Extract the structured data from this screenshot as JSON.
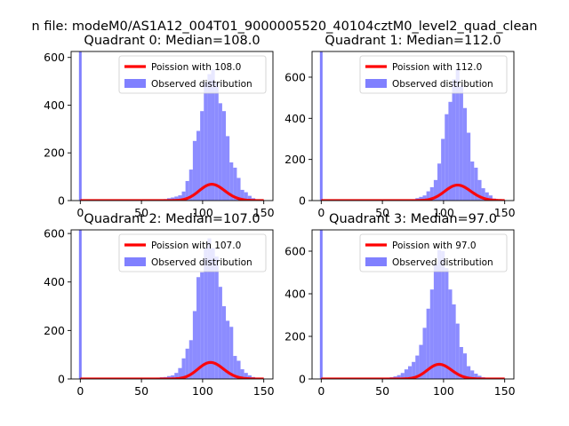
{
  "figure": {
    "suptitle": "n file: modeM0/AS1A12_004T01_9000005520_40104cztM0_level2_quad_clean"
  },
  "colors": {
    "bar": "#8080ff",
    "line": "#ff0000",
    "text": "#000000"
  },
  "chart_data": [
    {
      "type": "bar",
      "title": "Quadrant 0: Median=108.0",
      "xlim": [
        -7.5,
        157.5
      ],
      "ylim": [
        0,
        625
      ],
      "xticks": [
        0,
        50,
        100,
        150
      ],
      "yticks": [
        0,
        200,
        400,
        600
      ],
      "legend": {
        "position": "upper right",
        "entries": [
          "Poission with 108.0",
          "Observed distribution"
        ]
      },
      "bar_width": 3,
      "zero_bin": {
        "x": 0,
        "value": 625
      },
      "bars": {
        "x": [
          62,
          65,
          68,
          71,
          74,
          77,
          80,
          83,
          86,
          89,
          92,
          95,
          98,
          101,
          104,
          107,
          110,
          113,
          116,
          119,
          122,
          125,
          128,
          131,
          134,
          137,
          140
        ],
        "values": [
          2,
          4,
          6,
          10,
          13,
          17,
          22,
          38,
          82,
          130,
          250,
          292,
          375,
          495,
          530,
          550,
          495,
          408,
          375,
          270,
          160,
          138,
          95,
          45,
          35,
          20,
          10
        ]
      },
      "poisson": {
        "name": "Poission with 108.0",
        "mean": 108.0,
        "scale": 1780,
        "x_range": [
          0,
          150
        ]
      }
    },
    {
      "type": "bar",
      "title": "Quadrant 1: Median=112.0",
      "xlim": [
        -7.5,
        157.5
      ],
      "ylim": [
        0,
        725
      ],
      "xticks": [
        0,
        50,
        100,
        150
      ],
      "yticks": [
        0,
        200,
        400,
        600
      ],
      "legend": {
        "position": "upper right",
        "entries": [
          "Poission with 112.0",
          "Observed distribution"
        ]
      },
      "bar_width": 3,
      "zero_bin": {
        "x": 0,
        "value": 725
      },
      "bars": {
        "x": [
          74,
          77,
          80,
          83,
          86,
          89,
          92,
          95,
          98,
          101,
          104,
          107,
          110,
          113,
          116,
          119,
          122,
          125,
          128,
          131,
          134,
          137,
          140
        ],
        "values": [
          5,
          12,
          18,
          25,
          45,
          65,
          100,
          180,
          300,
          420,
          480,
          590,
          640,
          560,
          450,
          330,
          190,
          160,
          100,
          60,
          40,
          25,
          10
        ]
      },
      "poisson": {
        "name": "Poission with 112.0",
        "mean": 112.0,
        "scale": 2000,
        "x_range": [
          0,
          150
        ]
      }
    },
    {
      "type": "bar",
      "title": "Quadrant 2: Median=107.0",
      "xlim": [
        -7.5,
        157.5
      ],
      "ylim": [
        0,
        615
      ],
      "xticks": [
        0,
        50,
        100,
        150
      ],
      "yticks": [
        0,
        200,
        400,
        600
      ],
      "legend": {
        "position": "upper right",
        "entries": [
          "Poission with 107.0",
          "Observed distribution"
        ]
      },
      "bar_width": 3,
      "zero_bin": {
        "x": 0,
        "value": 615
      },
      "bars": {
        "x": [
          62,
          65,
          68,
          71,
          74,
          77,
          80,
          83,
          86,
          89,
          92,
          95,
          98,
          101,
          104,
          107,
          110,
          113,
          116,
          119,
          122,
          125,
          128,
          131,
          134,
          137,
          140
        ],
        "values": [
          5,
          7,
          8,
          12,
          15,
          25,
          45,
          85,
          125,
          160,
          280,
          420,
          440,
          540,
          580,
          540,
          505,
          380,
          300,
          240,
          215,
          95,
          75,
          40,
          25,
          15,
          8
        ]
      },
      "poisson": {
        "name": "Poission with 107.0",
        "mean": 107.0,
        "scale": 1770,
        "x_range": [
          0,
          150
        ]
      }
    },
    {
      "type": "bar",
      "title": "Quadrant 3: Median=97.0",
      "xlim": [
        -7.5,
        157.5
      ],
      "ylim": [
        0,
        700
      ],
      "xticks": [
        0,
        50,
        100,
        150
      ],
      "yticks": [
        0,
        200,
        400,
        600
      ],
      "legend": {
        "position": "upper right",
        "entries": [
          "Poission with 97.0",
          "Observed distribution"
        ]
      },
      "bar_width": 3,
      "zero_bin": {
        "x": 0,
        "value": 700
      },
      "bars": {
        "x": [
          50,
          53,
          56,
          59,
          62,
          65,
          68,
          71,
          74,
          77,
          80,
          83,
          86,
          89,
          92,
          95,
          98,
          101,
          104,
          107,
          110,
          113,
          116,
          119,
          122,
          125,
          128,
          131
        ],
        "values": [
          2,
          5,
          8,
          12,
          18,
          28,
          45,
          60,
          80,
          110,
          160,
          240,
          330,
          420,
          540,
          605,
          600,
          520,
          420,
          350,
          260,
          150,
          120,
          60,
          40,
          25,
          15,
          8
        ]
      },
      "poisson": {
        "name": "Poission with 97.0",
        "mean": 97.0,
        "scale": 1700,
        "x_range": [
          0,
          150
        ]
      }
    }
  ]
}
